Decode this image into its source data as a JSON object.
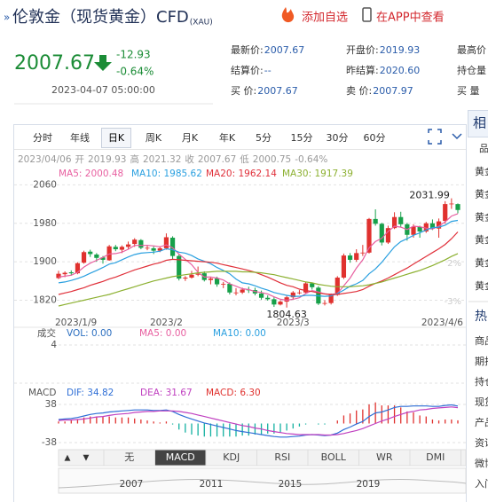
{
  "header": {
    "title": "伦敦金（现货黄金）CFD",
    "code": "(XAU)",
    "add_watch": "添加自选",
    "app_view": "在APP中查看"
  },
  "quote": {
    "change": "-12.93",
    "change_pct": "-0.64%",
    "time": "2023-04-07 05:00:00"
  },
  "stats": {
    "rows": [
      [
        {
          "label": "最新价:",
          "value": "2007.67"
        },
        {
          "label": "开盘价:",
          "value": "2019.93"
        },
        {
          "label": "最高价",
          "value": ""
        }
      ],
      [
        {
          "label": "结算价:",
          "value": "--"
        },
        {
          "label": "昨结算:",
          "value": "2020.60"
        },
        {
          "label": "持仓量",
          "value": ""
        }
      ],
      [
        {
          "label": "买  价:",
          "value": "2007.67"
        },
        {
          "label": "卖  价:",
          "value": "2007.97"
        },
        {
          "label": "买  量",
          "value": ""
        }
      ]
    ]
  },
  "chart": {
    "tabs": [
      "分时",
      "年线",
      "日K",
      "周K",
      "月K",
      "年K",
      "5分",
      "15分",
      "30分",
      "60分"
    ],
    "active_tab": 2,
    "info": {
      "date": "2023/04/06",
      "open_label": "开",
      "high_label": "高",
      "close_label": "收",
      "low_label": "低",
      "change_pct": "-0.64%"
    },
    "price": {
      "type": "candlestick",
      "categories": [
        "2023/1/9",
        null,
        null,
        null,
        null,
        null,
        null,
        null,
        null,
        null,
        null,
        null,
        null,
        null,
        null,
        null,
        null,
        "2023/2",
        null,
        null,
        null,
        null,
        null,
        null,
        null,
        null,
        null,
        null,
        null,
        null,
        null,
        null,
        null,
        null,
        null,
        null,
        null,
        "2023/3",
        null,
        null,
        null,
        null,
        null,
        null,
        null,
        null,
        null,
        null,
        null,
        null,
        null,
        null,
        null,
        null,
        null,
        null,
        null,
        null,
        null,
        null,
        null,
        null,
        null,
        "2023/4/6"
      ],
      "candles": [
        [
          1866,
          1881,
          1864,
          1875
        ],
        [
          1874,
          1880,
          1868,
          1877
        ],
        [
          1878,
          1882,
          1871,
          1876
        ],
        [
          1876,
          1899,
          1874,
          1897
        ],
        [
          1898,
          1923,
          1896,
          1920
        ],
        [
          1921,
          1925,
          1910,
          1916
        ],
        [
          1915,
          1918,
          1900,
          1908
        ],
        [
          1909,
          1912,
          1896,
          1904
        ],
        [
          1903,
          1935,
          1902,
          1932
        ],
        [
          1931,
          1935,
          1922,
          1926
        ],
        [
          1925,
          1934,
          1918,
          1931
        ],
        [
          1931,
          1942,
          1927,
          1936
        ],
        [
          1937,
          1949,
          1931,
          1946
        ],
        [
          1945,
          1947,
          1926,
          1929
        ],
        [
          1929,
          1935,
          1924,
          1929
        ],
        [
          1928,
          1932,
          1916,
          1923
        ],
        [
          1923,
          1932,
          1920,
          1928
        ],
        [
          1928,
          1959,
          1925,
          1951
        ],
        [
          1950,
          1953,
          1905,
          1912
        ],
        [
          1912,
          1915,
          1861,
          1865
        ],
        [
          1865,
          1870,
          1860,
          1867
        ],
        [
          1867,
          1881,
          1865,
          1873
        ],
        [
          1873,
          1890,
          1870,
          1875
        ],
        [
          1876,
          1880,
          1859,
          1862
        ],
        [
          1862,
          1869,
          1853,
          1865
        ],
        [
          1865,
          1869,
          1848,
          1853
        ],
        [
          1854,
          1858,
          1845,
          1854
        ],
        [
          1854,
          1857,
          1832,
          1836
        ],
        [
          1836,
          1845,
          1830,
          1836
        ],
        [
          1836,
          1846,
          1833,
          1842
        ],
        [
          1842,
          1848,
          1835,
          1841
        ],
        [
          1841,
          1846,
          1830,
          1834
        ],
        [
          1834,
          1840,
          1821,
          1825
        ],
        [
          1825,
          1830,
          1819,
          1822
        ],
        [
          1822,
          1827,
          1806,
          1811
        ],
        [
          1811,
          1820,
          1809,
          1817
        ],
        [
          1817,
          1829,
          1804.63,
          1826
        ],
        [
          1826,
          1839,
          1821,
          1836
        ],
        [
          1836,
          1841,
          1832,
          1836
        ],
        [
          1836,
          1858,
          1834,
          1855
        ],
        [
          1855,
          1857,
          1842,
          1847
        ],
        [
          1846,
          1849,
          1810,
          1813
        ],
        [
          1813,
          1820,
          1809,
          1814
        ],
        [
          1814,
          1834,
          1811,
          1831
        ],
        [
          1831,
          1870,
          1829,
          1867
        ],
        [
          1867,
          1917,
          1864,
          1913
        ],
        [
          1913,
          1918,
          1898,
          1904
        ],
        [
          1904,
          1926,
          1900,
          1918
        ],
        [
          1918,
          1935,
          1912,
          1919
        ],
        [
          1919,
          1991,
          1917,
          1989
        ],
        [
          1989,
          2009,
          1975,
          1979
        ],
        [
          1979,
          1981,
          1934,
          1940
        ],
        [
          1940,
          1975,
          1937,
          1970
        ],
        [
          1970,
          2003,
          1968,
          1993
        ],
        [
          1993,
          2004,
          1973,
          1978
        ],
        [
          1978,
          1981,
          1944,
          1956
        ],
        [
          1956,
          1978,
          1950,
          1973
        ],
        [
          1973,
          1975,
          1950,
          1963
        ],
        [
          1963,
          1983,
          1960,
          1980
        ],
        [
          1980,
          1988,
          1966,
          1969
        ],
        [
          1969,
          1990,
          1950,
          1984
        ],
        [
          1985,
          2026,
          1979,
          2020
        ],
        [
          2020,
          2031.99,
          2010,
          2021
        ],
        [
          2019.93,
          2021.32,
          2000.75,
          2007.67
        ]
      ],
      "ylim": [
        1795,
        2070
      ],
      "yticks": [
        1820,
        1900,
        1980,
        2060
      ],
      "grid": true,
      "up_color": "#e0312e",
      "down_color": "#17a04a",
      "pct_labels": [
        "2%",
        "-3%"
      ],
      "series": [
        {
          "name": "MA5: 2000.48",
          "color": "#e85fa0",
          "values": [
            1868,
            1870,
            1872,
            1878,
            1889,
            1897,
            1903,
            1909,
            1916,
            1917,
            1920,
            1926,
            1934,
            1934,
            1934,
            1933,
            1931,
            1935,
            1929,
            1916,
            1905,
            1894,
            1878,
            1868,
            1868,
            1866,
            1862,
            1854,
            1849,
            1844,
            1842,
            1838,
            1836,
            1833,
            1827,
            1822,
            1820,
            1822,
            1825,
            1834,
            1840,
            1837,
            1833,
            1832,
            1834,
            1850,
            1866,
            1887,
            1904,
            1929,
            1942,
            1949,
            1963,
            1974,
            1972,
            1967,
            1974,
            1973,
            1970,
            1968,
            1974,
            1983,
            1995,
            2000
          ]
        },
        {
          "name": "MA10: 1985.62",
          "color": "#2aa0e0",
          "values": [
            1856,
            1858,
            1861,
            1865,
            1870,
            1876,
            1882,
            1888,
            1895,
            1898,
            1904,
            1910,
            1915,
            1918,
            1919,
            1920,
            1922,
            1927,
            1925,
            1920,
            1918,
            1913,
            1906,
            1901,
            1896,
            1888,
            1882,
            1875,
            1864,
            1856,
            1854,
            1850,
            1845,
            1841,
            1836,
            1833,
            1830,
            1828,
            1828,
            1830,
            1830,
            1829,
            1828,
            1829,
            1834,
            1841,
            1849,
            1854,
            1861,
            1875,
            1885,
            1899,
            1915,
            1931,
            1942,
            1948,
            1955,
            1960,
            1966,
            1971,
            1972,
            1976,
            1984,
            1986
          ]
        },
        {
          "name": "MA20: 1962.14",
          "color": "#e0303a",
          "values": [
            1832,
            1835,
            1838,
            1842,
            1846,
            1851,
            1855,
            1859,
            1864,
            1868,
            1873,
            1878,
            1883,
            1887,
            1891,
            1895,
            1898,
            1903,
            1905,
            1904,
            1903,
            1902,
            1901,
            1900,
            1899,
            1897,
            1894,
            1891,
            1888,
            1885,
            1882,
            1878,
            1873,
            1868,
            1862,
            1856,
            1851,
            1848,
            1843,
            1840,
            1838,
            1835,
            1833,
            1832,
            1832,
            1834,
            1836,
            1838,
            1842,
            1849,
            1855,
            1860,
            1866,
            1873,
            1880,
            1887,
            1895,
            1903,
            1911,
            1919,
            1927,
            1936,
            1948,
            1962
          ]
        },
        {
          "name": "MA30: 1917.39",
          "color": "#8cb030",
          "values": [
            1808,
            1811,
            1814,
            1817,
            1820,
            1823,
            1826,
            1829,
            1832,
            1836,
            1840,
            1844,
            1848,
            1852,
            1856,
            1860,
            1863,
            1866,
            1869,
            1871,
            1873,
            1875,
            1877,
            1878,
            1879,
            1880,
            1880,
            1880,
            1880,
            1879,
            1879,
            1878,
            1877,
            1875,
            1873,
            1870,
            1867,
            1864,
            1861,
            1858,
            1856,
            1853,
            1851,
            1849,
            1848,
            1848,
            1848,
            1849,
            1850,
            1852,
            1855,
            1858,
            1862,
            1866,
            1870,
            1874,
            1878,
            1882,
            1887,
            1892,
            1898,
            1904,
            1911,
            1917
          ]
        }
      ]
    },
    "volume": {
      "title": "成交",
      "series": [
        {
          "name": "VOL: 0.00",
          "color": "#2c6fc0"
        },
        {
          "name": "MA5: 0.00",
          "color": "#e85fa0"
        },
        {
          "name": "MA10: 0.00",
          "color": "#2aa0e0"
        }
      ],
      "yticks": [
        4
      ]
    },
    "macd": {
      "title": "MACD",
      "ylim": [
        -45,
        45
      ],
      "yticks": [
        38,
        -38
      ],
      "series": [
        {
          "name": "DIF: 34.82",
          "color": "#2f6fd6",
          "values": [
            8,
            9,
            10,
            12,
            15,
            18,
            20,
            21,
            23,
            24,
            25,
            26,
            27,
            27,
            27,
            26,
            26,
            27,
            24,
            18,
            13,
            9,
            5,
            1,
            -2,
            -5,
            -8,
            -11,
            -14,
            -16,
            -18,
            -20,
            -22,
            -24,
            -26,
            -27,
            -27,
            -26,
            -25,
            -23,
            -22,
            -23,
            -24,
            -23,
            -19,
            -12,
            -7,
            -1,
            4,
            14,
            21,
            23,
            27,
            32,
            34,
            34,
            35,
            35,
            35,
            34,
            34,
            36,
            37,
            34.82
          ]
        },
        {
          "name": "DEA: 31.67",
          "color": "#c040c0",
          "values": [
            6,
            7,
            7,
            8,
            9,
            11,
            13,
            14,
            16,
            18,
            19,
            20,
            22,
            23,
            24,
            24,
            25,
            25,
            25,
            24,
            22,
            20,
            17,
            14,
            11,
            8,
            5,
            2,
            -1,
            -4,
            -6,
            -9,
            -11,
            -14,
            -16,
            -18,
            -20,
            -21,
            -22,
            -22,
            -22,
            -22,
            -23,
            -23,
            -22,
            -20,
            -17,
            -14,
            -10,
            -5,
            0,
            5,
            9,
            14,
            18,
            22,
            24,
            27,
            28,
            30,
            31,
            32,
            33,
            31.67
          ]
        }
      ],
      "histogram": {
        "name": "MACD: 6.30",
        "up_color": "#e0312e",
        "down_color": "#12b0a0",
        "values": [
          4,
          4,
          6,
          8,
          12,
          14,
          14,
          14,
          14,
          12,
          12,
          12,
          10,
          8,
          6,
          4,
          2,
          4,
          -2,
          -12,
          -18,
          -22,
          -24,
          -26,
          -26,
          -26,
          -26,
          -26,
          -26,
          -24,
          -24,
          -22,
          -22,
          -20,
          -20,
          -18,
          -14,
          -10,
          -6,
          -2,
          0,
          -2,
          -2,
          0,
          6,
          16,
          20,
          26,
          28,
          38,
          42,
          36,
          36,
          36,
          32,
          24,
          22,
          16,
          14,
          8,
          6,
          8,
          8,
          6.3
        ]
      }
    },
    "indicator_tabs": [
      "无",
      "MACD",
      "KDJ",
      "RSI",
      "BOLL",
      "WR",
      "DMI"
    ],
    "active_indicator": 1,
    "arrows": [
      "▲",
      "▼"
    ],
    "navigator_years": [
      "2007",
      "2011",
      "2015",
      "2019"
    ]
  },
  "sidebar": {
    "title": "相",
    "items": [
      "品",
      "黄金",
      "黄金",
      "黄金",
      "黄金",
      "黄金",
      "黄金"
    ],
    "hot_title": "热",
    "hot_items": [
      "商品",
      "期指",
      "持仓",
      "现货",
      "产品",
      "资讯",
      "微博",
      "入门"
    ]
  }
}
